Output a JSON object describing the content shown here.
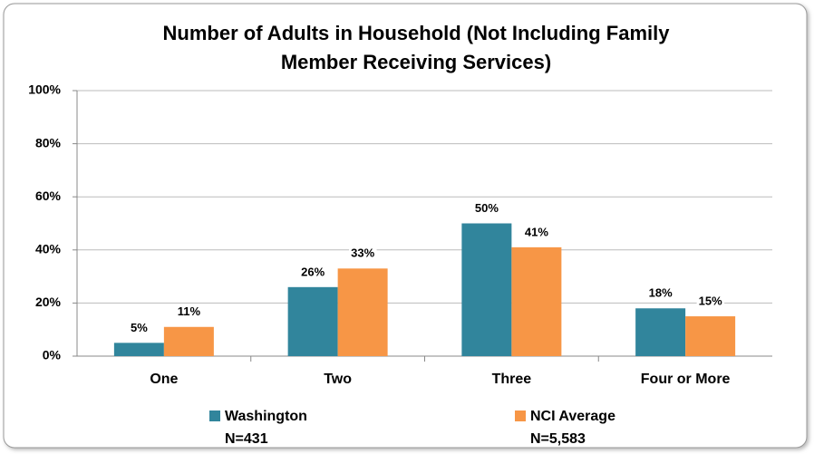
{
  "chart_data": {
    "type": "bar",
    "title": [
      "Number of Adults in Household (Not Including Family",
      "Member Receiving Services)"
    ],
    "categories": [
      "One",
      "Two",
      "Three",
      "Four or More"
    ],
    "series": [
      {
        "name": "Washington",
        "n_label": "N=431",
        "color": "#31859c",
        "values": [
          5,
          26,
          50,
          18
        ],
        "value_labels": [
          "5%",
          "26%",
          "50%",
          "18%"
        ]
      },
      {
        "name": "NCI Average",
        "n_label": "N=5,583",
        "color": "#f79646",
        "values": [
          11,
          33,
          41,
          15
        ],
        "value_labels": [
          "11%",
          "33%",
          "41%",
          "15%"
        ]
      }
    ],
    "ylim": [
      0,
      100
    ],
    "yticks": [
      {
        "value": 0,
        "label": "0%"
      },
      {
        "value": 20,
        "label": "20%"
      },
      {
        "value": 40,
        "label": "40%"
      },
      {
        "value": 60,
        "label": "60%"
      },
      {
        "value": 80,
        "label": "80%"
      },
      {
        "value": 100,
        "label": "100%"
      }
    ],
    "grid": true,
    "legend": "bottom"
  }
}
